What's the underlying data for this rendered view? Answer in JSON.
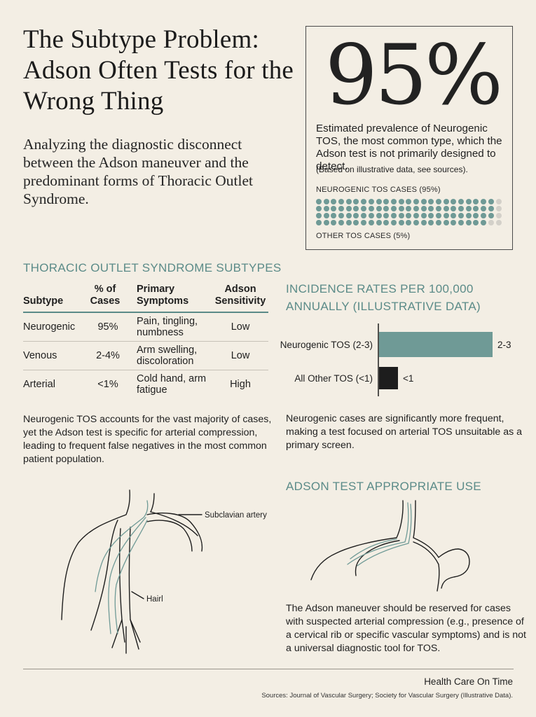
{
  "title": "The Subtype Problem: Adson Often Tests for the Wrong Thing",
  "subtitle": "Analyzing the diagnostic disconnect between the Adson maneuver and the predominant forms of Thoracic Outlet Syndrome.",
  "stat": {
    "value": "95%",
    "description": "Estimated prevalence of Neurogenic TOS, the most common type, which the Adson test is not primarily designed to detect.",
    "note": "(Based on illustrative data, see sources).",
    "neurogenic_label": "NEUROGENIC TOS CASES (95%)",
    "other_label": "OTHER TOS CASES (5%)",
    "dots_total": 100,
    "dots_highlighted": 95,
    "dot_color": "#6f9a96",
    "dot_other_color": "#d3d0c9"
  },
  "subtypes": {
    "heading": "THORACIC OUTLET SYNDROME SUBTYPES",
    "columns": [
      "Subtype",
      "% of Cases",
      "Primary Symptoms",
      "Adson Sensitivity"
    ],
    "rows": [
      [
        "Neurogenic",
        "95%",
        "Pain, tingling, numbness",
        "Low"
      ],
      [
        "Venous",
        "2-4%",
        "Arm swelling, discoloration",
        "Low"
      ],
      [
        "Arterial",
        "<1%",
        "Cold hand, arm fatigue",
        "High"
      ]
    ],
    "paragraph": "Neurogenic TOS accounts for the vast majority of cases, yet the Adson test is specific for arterial compression, leading to frequent false negatives in the most common patient population."
  },
  "incidence": {
    "heading": "INCIDENCE RATES PER 100,000 ANNUALLY (ILLUSTRATIVE DATA)",
    "paragraph": "Neurogenic cases are significantly more frequent, making a test focused on arterial TOS unsuitable as a primary screen."
  },
  "chart_data": {
    "type": "bar",
    "orientation": "horizontal",
    "title": "INCIDENCE RATES PER 100,000 ANNUALLY (ILLUSTRATIVE DATA)",
    "categories": [
      "Neurogenic TOS (2-3)",
      "All Other TOS (<1)"
    ],
    "values": [
      3,
      0.5
    ],
    "value_labels": [
      "2-3",
      "<1"
    ],
    "colors": [
      "#6f9a96",
      "#1d1d1d"
    ],
    "xlim": [
      0,
      3
    ],
    "grid": false
  },
  "diagram_left": {
    "label_artery": "Subclavian artery",
    "label_nerve": "Hairl"
  },
  "appropriate_use": {
    "heading": "ADSON TEST APPROPRIATE USE",
    "paragraph": "The Adson maneuver should be reserved for cases with suspected arterial compression (e.g., presence of a cervical rib or specific vascular symptoms) and is not a universal diagnostic tool for TOS."
  },
  "footer": {
    "publisher": "Health Care On Time",
    "sources": "Sources: Journal of Vascular Surgery; Society for Vascular Surgery (Illustrative Data)."
  }
}
